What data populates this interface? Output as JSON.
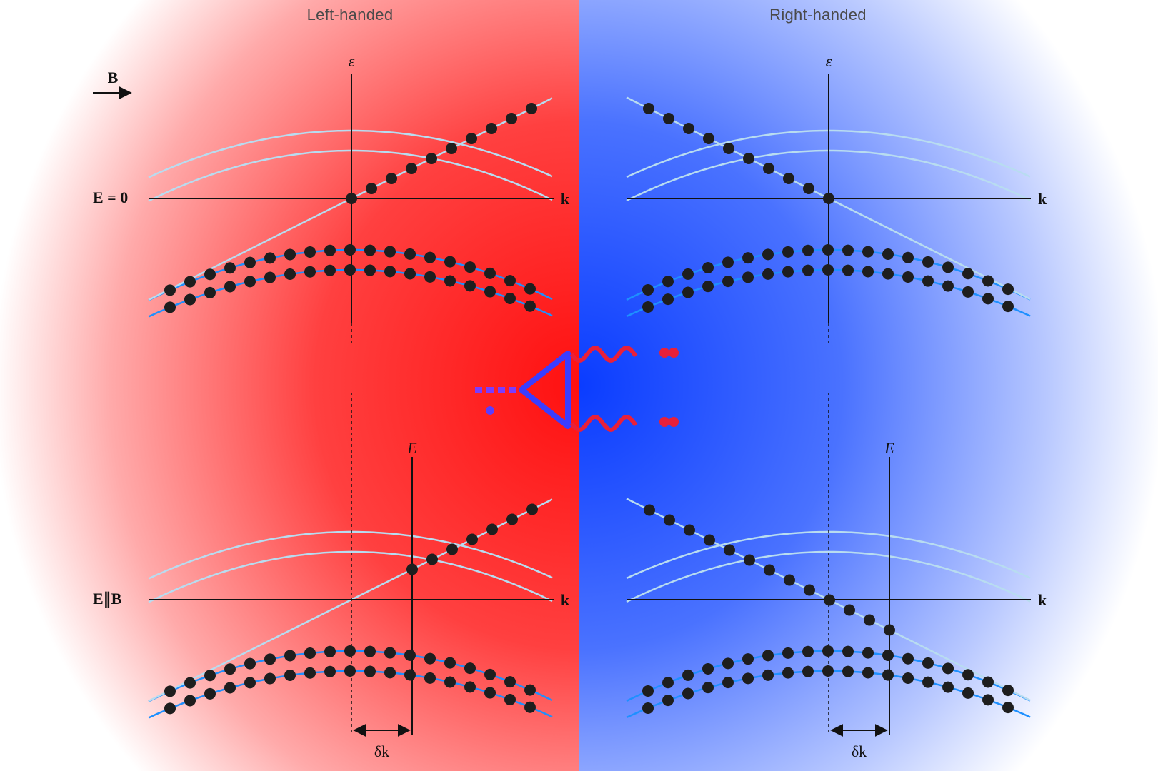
{
  "panels": {
    "left": {
      "title": "Left-handed",
      "accent": "#ff1a1a"
    },
    "right": {
      "title": "Right-handed",
      "accent": "#1144ff"
    }
  },
  "labels": {
    "field": "B",
    "eps": "ε",
    "energy": "E",
    "k": "k",
    "row_top": "E = 0",
    "row_bottom": "E∥B",
    "delta": "δk"
  },
  "colors": {
    "band": "#1e90ff",
    "band_empty": "#b8dcf0",
    "electron": "#1e1e1e",
    "axis": "#111111",
    "photon": "#e8203a",
    "vertex": "#3a3dff"
  },
  "icons": [
    "field-arrow-icon",
    "electron-dot-icon",
    "photon-wavy-icon",
    "triangle-loop-icon"
  ]
}
